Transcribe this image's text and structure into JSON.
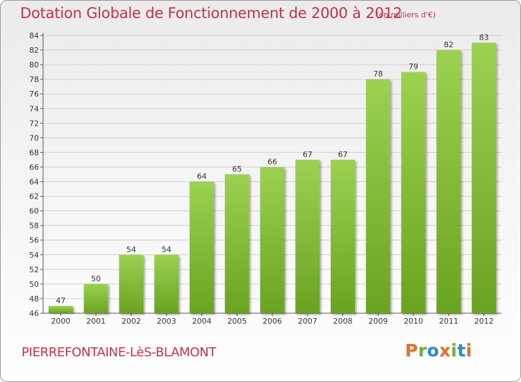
{
  "title": "Dotation Globale de Fonctionnement de 2000 à 2012",
  "subtitle": "(en milliers d'€)",
  "commune": "PIERREFONTAINE-LèS-BLAMONT",
  "logo": {
    "letters": [
      "P",
      "r",
      "o",
      "x",
      "i",
      "t",
      "i"
    ],
    "colors": [
      "#e8702a",
      "#6cb33f",
      "#2a8bd1",
      "#e8702a",
      "#6cb33f",
      "#2a8bd1",
      "#e8702a"
    ]
  },
  "colors": {
    "title": "#c2314a",
    "bar_light": "#9cd151",
    "bar_dark": "#6aa321",
    "gridline": "#cfcfcf"
  },
  "chart_data": {
    "type": "bar",
    "categories": [
      "2000",
      "2001",
      "2002",
      "2003",
      "2004",
      "2005",
      "2006",
      "2007",
      "2008",
      "2009",
      "2010",
      "2011",
      "2012"
    ],
    "values": [
      47,
      50,
      54,
      54,
      64,
      65,
      66,
      67,
      67,
      78,
      79,
      82,
      83
    ],
    "title": "Dotation Globale de Fonctionnement de 2000 à 2012",
    "subtitle": "(en milliers d'€)",
    "ylim": [
      46,
      84
    ],
    "yticks": [
      46,
      48,
      50,
      52,
      54,
      56,
      58,
      60,
      62,
      64,
      66,
      68,
      70,
      72,
      74,
      76,
      78,
      80,
      82,
      84
    ],
    "grid": true,
    "data_labels": true,
    "legend": false
  }
}
